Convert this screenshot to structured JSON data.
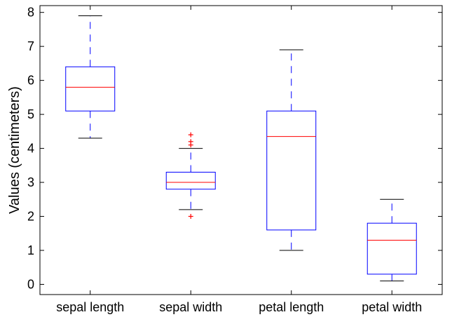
{
  "chart_data": {
    "type": "box",
    "title": "",
    "xlabel": "",
    "ylabel": "Values (centimeters)",
    "ylim": [
      -0.3,
      8.2
    ],
    "yticks": [
      0,
      1,
      2,
      3,
      4,
      5,
      6,
      7,
      8
    ],
    "grid": false,
    "colors": {
      "box": "#0000ff",
      "median": "#ff0000",
      "outlier": "#ff0000",
      "axis": "#000000"
    },
    "categories": [
      "sepal length",
      "sepal width",
      "petal length",
      "petal width"
    ],
    "boxes": [
      {
        "name": "sepal length",
        "whisker_low": 4.3,
        "q1": 5.1,
        "median": 5.8,
        "q3": 6.4,
        "whisker_high": 7.9,
        "outliers": []
      },
      {
        "name": "sepal width",
        "whisker_low": 2.2,
        "q1": 2.8,
        "median": 3.0,
        "q3": 3.3,
        "whisker_high": 4.0,
        "outliers": [
          2.0,
          4.1,
          4.2,
          4.4
        ]
      },
      {
        "name": "petal length",
        "whisker_low": 1.0,
        "q1": 1.6,
        "median": 4.35,
        "q3": 5.1,
        "whisker_high": 6.9,
        "outliers": []
      },
      {
        "name": "petal width",
        "whisker_low": 0.1,
        "q1": 0.3,
        "median": 1.3,
        "q3": 1.8,
        "whisker_high": 2.5,
        "outliers": []
      }
    ]
  }
}
